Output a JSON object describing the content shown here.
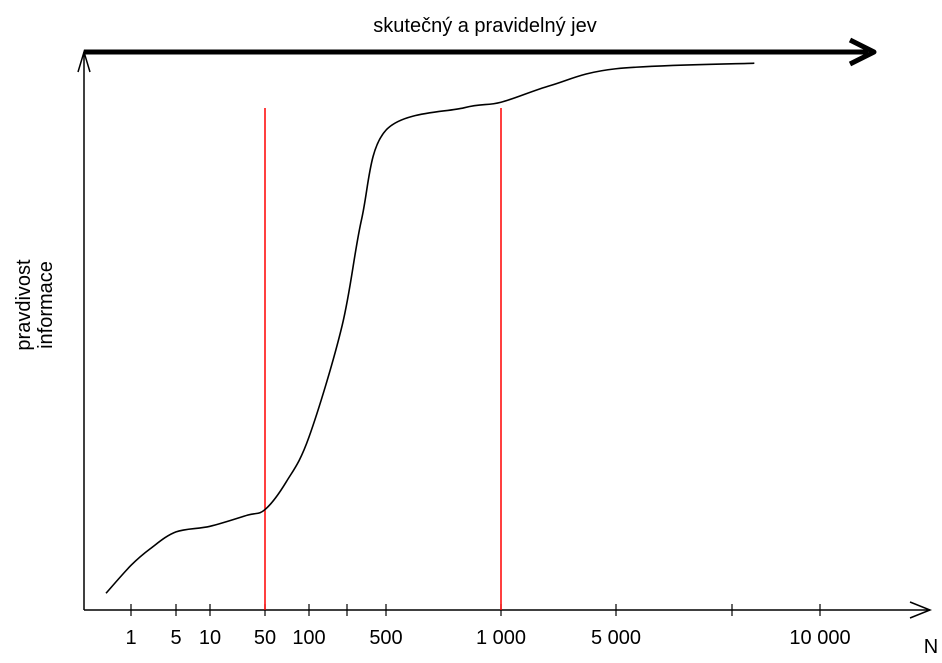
{
  "chart_data": {
    "type": "line",
    "title": "skutečný a pravidelný jev",
    "ylabel": "pravdivost informace",
    "ylabel_lines": [
      "pravdivost",
      "informace"
    ],
    "xlabel": "N",
    "x_scale": "log",
    "tick_labels": [
      "1",
      "5",
      "10",
      "50",
      "100",
      "500",
      "1 000",
      "5 000",
      "10 000"
    ],
    "tick_values": [
      1,
      5,
      10,
      50,
      100,
      500,
      1000,
      5000,
      10000
    ],
    "reference_lines": [
      50,
      1000
    ],
    "reference_line_color": "#ff0000",
    "line_color": "#000000",
    "grid": false,
    "series": [
      {
        "x": [
          0.5,
          1,
          2,
          5,
          10,
          30,
          50,
          70,
          100,
          200,
          300,
          500,
          800,
          1000,
          2000,
          5000,
          8000
        ],
        "y": [
          0.03,
          0.08,
          0.11,
          0.14,
          0.15,
          0.17,
          0.18,
          0.23,
          0.31,
          0.51,
          0.7,
          0.86,
          0.9,
          0.91,
          0.94,
          0.97,
          0.98
        ]
      }
    ]
  }
}
